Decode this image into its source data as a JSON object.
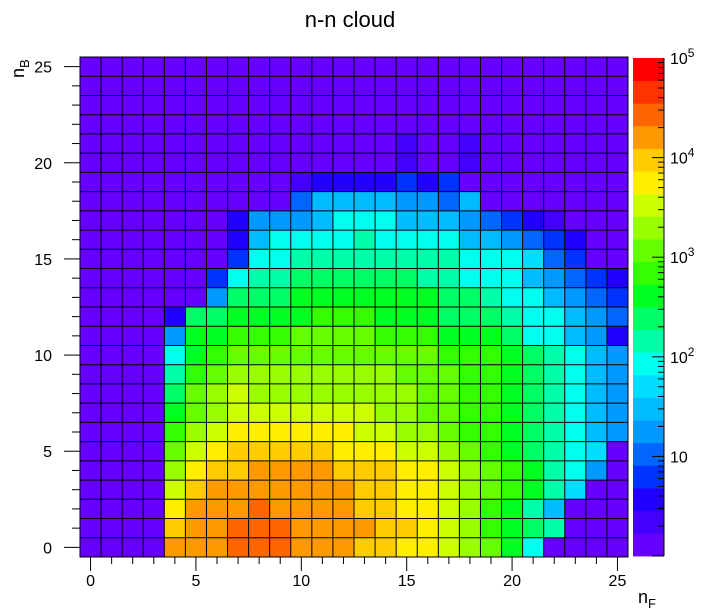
{
  "chart_data": {
    "type": "heatmap",
    "title": "n-n cloud",
    "xlabel": "n",
    "xlabel_sub": "F",
    "ylabel": "n",
    "ylabel_sub": "B",
    "xlim": [
      -0.5,
      25.5
    ],
    "ylim": [
      -0.5,
      25.5
    ],
    "x_ticks": [
      0,
      5,
      10,
      15,
      20,
      25
    ],
    "y_ticks": [
      0,
      5,
      10,
      15,
      20,
      25
    ],
    "z_scale": "log",
    "z_range": [
      1,
      100000
    ],
    "colorbar_ticks": [
      {
        "value": 10,
        "label": "10"
      },
      {
        "value": 100,
        "exp": "2"
      },
      {
        "value": 1000,
        "exp": "3"
      },
      {
        "value": 10000,
        "exp": "4"
      },
      {
        "value": 100000,
        "exp": "5"
      }
    ],
    "palette": [
      "#6600ff",
      "#4400ff",
      "#2200ff",
      "#0033ff",
      "#0066ff",
      "#0099ff",
      "#00bbff",
      "#00ddff",
      "#00ffee",
      "#00ffaa",
      "#00ff66",
      "#00ff22",
      "#33ff00",
      "#66ff00",
      "#99ff00",
      "#ccff00",
      "#ffee00",
      "#ffcc00",
      "#ff9900",
      "#ff6600",
      "#ff3300",
      "#ff0000"
    ],
    "grid": true,
    "color_index_rows_top_to_bottom": [
      "0000000000000000000000000",
      "0000000000000000000000000",
      "0000000000000000000000000",
      "0000000000000000000000000",
      "0000000000000001001000000",
      "0000000000000001001000000",
      "0000000000122223230000000",
      "0000000000466665546000000",
      "0000000255568886665432100",
      "0000000268888988886654320",
      "0000000388999999998887430",
      "0000003899aaaaaa99888654320",
      "0000005aaabbbbbbbaa988654320",
      "00002aabbbbcccbbbaaa988654",
      "00005bbcccddddcccbbba88652",
      "00008bcddddddddddcccba986530",
      "00009cdeeeeeeeedddccba986543",
      "0000adefeeeeeeeeddccba98654",
      "0000bdefffffffeeddccba98653",
      "0000cefggggggffeedccba98652",
      "0000dfghhhhhgggffedcba987",
      "0000eghhiiiihhhggfedcb985",
      "0000fhiiiiiiihhggfedcb97",
      "0000giiijiiiihhggfecb96",
      "0000hiijjjiiiihhgfecba9",
      "0000iiijjjiiihhggfedb8"
    ]
  }
}
